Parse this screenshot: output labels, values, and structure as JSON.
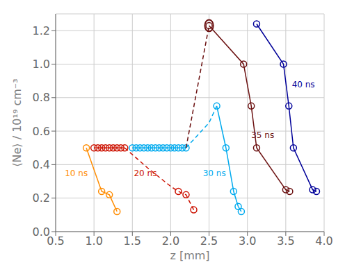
{
  "chart_data": {
    "type": "line",
    "xlabel": "z [mm]",
    "ylabel": "⟨Ne⟩ / 10¹⁹ cm⁻³",
    "xlim": [
      0.5,
      4.0
    ],
    "ylim": [
      0.0,
      1.3
    ],
    "xticks": [
      0.5,
      {
        "value": 1.0,
        "label": "1.0"
      },
      1.5,
      {
        "value": 2.0,
        "label": "2.0"
      },
      2.5,
      {
        "value": 3.0,
        "label": "3.0"
      },
      3.5,
      {
        "value": 4.0,
        "label": "4.0"
      }
    ],
    "yticks": [
      {
        "value": 0.0,
        "label": "0.0"
      },
      0.2,
      0.4,
      0.6,
      0.8,
      {
        "value": 1.0,
        "label": "1.0"
      },
      1.2
    ],
    "grid": true,
    "series": [
      {
        "color": "#FF8C00",
        "x": [
          0.9,
          1.1,
          1.2,
          1.3
        ],
        "values": [
          0.5,
          0.24,
          0.22,
          0.12
        ],
        "line_style": "solid",
        "marker": "circle"
      },
      {
        "color": "#CC1100",
        "x": [
          1.0,
          1.05,
          1.1,
          1.15,
          1.2,
          1.25,
          1.3,
          1.35,
          1.4
        ],
        "values": [
          0.5,
          0.5,
          0.5,
          0.5,
          0.5,
          0.5,
          0.5,
          0.5,
          0.5
        ],
        "line_style": "solid",
        "marker": "circle"
      },
      {
        "color": "#CC1100",
        "x": [
          1.4,
          1.7,
          2.0,
          2.1,
          2.2,
          2.3
        ],
        "values": [
          0.5,
          0.38,
          0.27,
          0.24,
          0.22,
          0.13
        ],
        "line_style": "dashed",
        "marker": "none"
      },
      {
        "color": "#CC1100",
        "x": [
          2.1,
          2.2,
          2.3
        ],
        "values": [
          0.24,
          0.22,
          0.13
        ],
        "line_style": "none",
        "marker": "circle"
      },
      {
        "color": "#00AAEE",
        "x": [
          1.5,
          1.55,
          1.6,
          1.65,
          1.7,
          1.75,
          1.8,
          1.85,
          1.9,
          1.95,
          2.0,
          2.05,
          2.1,
          2.15,
          2.2
        ],
        "values": [
          0.5,
          0.5,
          0.5,
          0.5,
          0.5,
          0.5,
          0.5,
          0.5,
          0.5,
          0.5,
          0.5,
          0.5,
          0.5,
          0.5,
          0.5
        ],
        "line_style": "solid",
        "marker": "circle"
      },
      {
        "color": "#00AAEE",
        "x": [
          2.2,
          2.5,
          2.6
        ],
        "values": [
          0.5,
          0.65,
          0.75
        ],
        "line_style": "dashed",
        "marker": "none"
      },
      {
        "color": "#00AAEE",
        "x": [
          2.6,
          2.72,
          2.82,
          2.88,
          2.92
        ],
        "values": [
          0.75,
          0.5,
          0.24,
          0.15,
          0.12
        ],
        "line_style": "solid",
        "marker": "circle"
      },
      {
        "color": "#6B1010",
        "x": [
          2.2,
          2.5
        ],
        "values": [
          0.5,
          1.23
        ],
        "line_style": "dashed",
        "marker": "none"
      },
      {
        "color": "#6B1010",
        "x": [
          2.5,
          2.95,
          3.05,
          3.12,
          3.5,
          3.55
        ],
        "values": [
          1.23,
          1.0,
          0.75,
          0.5,
          0.25,
          0.24
        ],
        "line_style": "solid",
        "marker": "circle"
      },
      {
        "color": "#000099",
        "x": [
          3.12,
          3.47,
          3.54,
          3.6,
          3.85,
          3.9
        ],
        "values": [
          1.24,
          1.0,
          0.75,
          0.5,
          0.25,
          0.24
        ],
        "line_style": "solid",
        "marker": "circle"
      }
    ],
    "annotations": [
      {
        "text": "10 ns",
        "x": 0.62,
        "y": 0.33,
        "color": "#FF8C00"
      },
      {
        "text": "20 ns",
        "x": 1.52,
        "y": 0.33,
        "color": "#CC1100"
      },
      {
        "text": "30 ns",
        "x": 2.42,
        "y": 0.33,
        "color": "#00AAEE"
      },
      {
        "text": "35 ns",
        "x": 3.05,
        "y": 0.56,
        "color": "#6B1010"
      },
      {
        "text": "40 ns",
        "x": 3.58,
        "y": 0.86,
        "color": "#000099"
      }
    ],
    "shapes": [
      {
        "shape": "ellipse",
        "x": 2.5,
        "y": 1.23,
        "width": 0.11,
        "height": 0.07,
        "color": "#6B1010"
      }
    ]
  }
}
